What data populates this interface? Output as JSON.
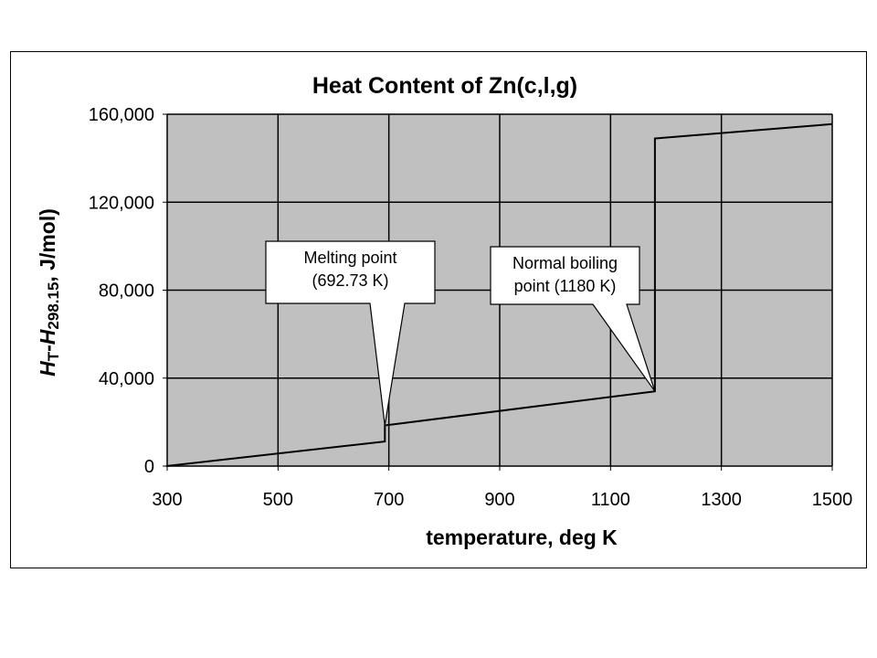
{
  "chart_data": {
    "type": "line",
    "title": "Heat Content of Zn(c,l,g)",
    "xlabel": "temperature, deg K",
    "ylabel": {
      "H1": "H",
      "sub1": "T",
      "dash": "-",
      "H2": "H",
      "sub2": "298.15",
      "unit": ", J/mol)"
    },
    "xlim": [
      300,
      1500
    ],
    "ylim": [
      0,
      160000
    ],
    "x_ticks": [
      300,
      500,
      700,
      900,
      1100,
      1300,
      1500
    ],
    "x_tick_labels": [
      "300",
      "500",
      "700",
      "900",
      "1100",
      "1300",
      "1500"
    ],
    "y_ticks": [
      0,
      40000,
      80000,
      120000,
      160000
    ],
    "y_tick_labels": [
      "0",
      "40,000",
      "80,000",
      "120,000",
      "160,000"
    ],
    "grid": true,
    "plot_background": "#c0c0c0",
    "line_color": "#000000",
    "series": [
      {
        "x": [
          298.15,
          692.73,
          692.73,
          1180,
          1180,
          1500
        ],
        "y": [
          0,
          11200,
          18500,
          34000,
          149000,
          155500
        ]
      }
    ],
    "annotations": [
      {
        "lines": [
          "Melting point",
          "(692.73 K)"
        ],
        "x": 692.73,
        "y": 18500
      },
      {
        "lines": [
          "Normal boiling",
          "point (1180 K)"
        ],
        "x": 1180,
        "y": 34000
      }
    ]
  }
}
